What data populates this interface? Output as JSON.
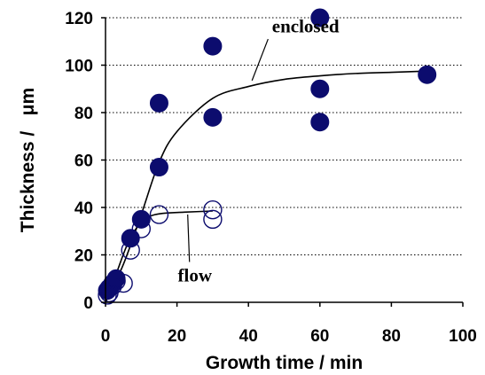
{
  "chart_data": {
    "type": "scatter",
    "xlabel": "Growth time / min",
    "ylabel": "Thickness /   μm",
    "xlim": [
      0,
      100
    ],
    "ylim": [
      0,
      120
    ],
    "x_ticks": [
      "0",
      "20",
      "40",
      "60",
      "80",
      "100"
    ],
    "y_ticks": [
      "0",
      "20",
      "40",
      "60",
      "80",
      "100",
      "120"
    ],
    "grid": "horizontal dotted",
    "series": [
      {
        "name": "enclosed",
        "marker": "filled-circle",
        "color": "#0c0c6e",
        "points": [
          {
            "x": 0.5,
            "y": 5
          },
          {
            "x": 1,
            "y": 6
          },
          {
            "x": 2,
            "y": 8
          },
          {
            "x": 3,
            "y": 10
          },
          {
            "x": 7,
            "y": 27
          },
          {
            "x": 10,
            "y": 35
          },
          {
            "x": 15,
            "y": 84
          },
          {
            "x": 15,
            "y": 57
          },
          {
            "x": 30,
            "y": 108
          },
          {
            "x": 30,
            "y": 78
          },
          {
            "x": 60,
            "y": 120
          },
          {
            "x": 60,
            "y": 90
          },
          {
            "x": 60,
            "y": 76
          },
          {
            "x": 90,
            "y": 96
          }
        ],
        "fit": [
          [
            0,
            0
          ],
          [
            5,
            16
          ],
          [
            10,
            37
          ],
          [
            15,
            59
          ],
          [
            20,
            72
          ],
          [
            30,
            86
          ],
          [
            40,
            91
          ],
          [
            50,
            94
          ],
          [
            60,
            95.5
          ],
          [
            70,
            96.5
          ],
          [
            80,
            97
          ],
          [
            90,
            97.5
          ]
        ]
      },
      {
        "name": "flow",
        "marker": "open-circle",
        "color": "#0c0c6e",
        "points": [
          {
            "x": 0.5,
            "y": 3
          },
          {
            "x": 1,
            "y": 4
          },
          {
            "x": 2,
            "y": 7
          },
          {
            "x": 3,
            "y": 9
          },
          {
            "x": 5,
            "y": 8
          },
          {
            "x": 7,
            "y": 22
          },
          {
            "x": 10,
            "y": 31
          },
          {
            "x": 15,
            "y": 37
          },
          {
            "x": 30,
            "y": 39
          },
          {
            "x": 30,
            "y": 35
          }
        ],
        "fit": [
          [
            0,
            0
          ],
          [
            3,
            12
          ],
          [
            6,
            24
          ],
          [
            9,
            32
          ],
          [
            12,
            36
          ],
          [
            16,
            37.5
          ],
          [
            22,
            38
          ],
          [
            30,
            38.5
          ]
        ]
      }
    ],
    "annotations": [
      {
        "text": "enclosed",
        "x": 56,
        "y": 116
      },
      {
        "text": "flow",
        "x": 25,
        "y": 11
      }
    ]
  }
}
